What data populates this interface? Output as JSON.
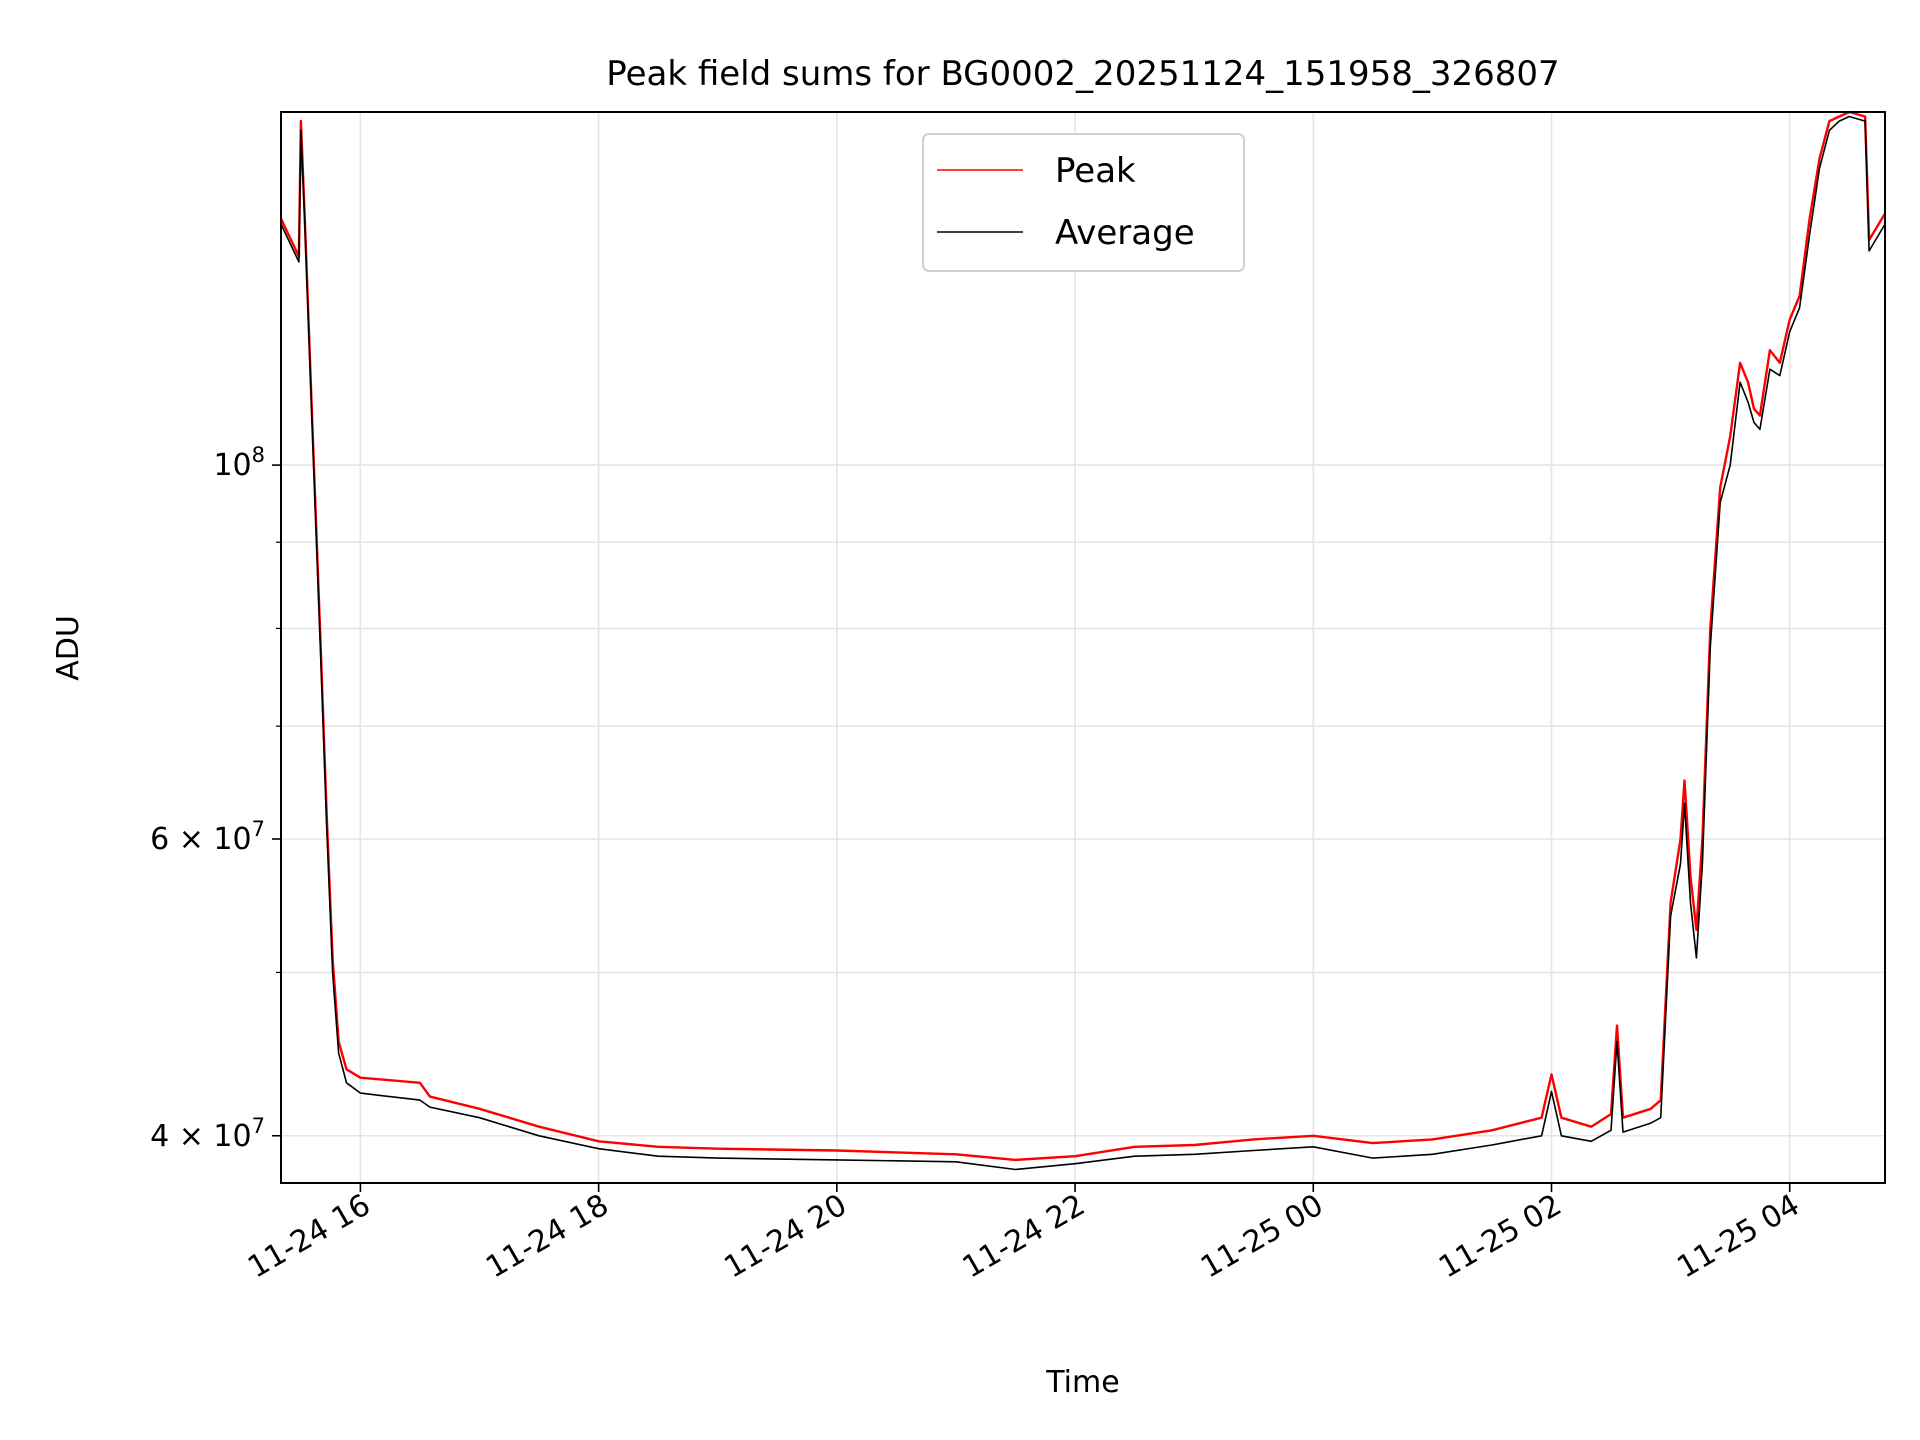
{
  "chart_data": {
    "type": "line",
    "title": "Peak field sums for BG0002_20251124_151958_326807",
    "xlabel": "Time",
    "ylabel": "ADU",
    "x_range": [
      "2025-11-24 15:20",
      "2025-11-25 04:48"
    ],
    "ylim": [
      37500000,
      162000000
    ],
    "yscale": "log",
    "grid": true,
    "legend_position": "upper center",
    "x_ticks": [
      {
        "value": "2025-11-24 16:00",
        "label": "11-24 16"
      },
      {
        "value": "2025-11-24 18:00",
        "label": "11-24 18"
      },
      {
        "value": "2025-11-24 20:00",
        "label": "11-24 20"
      },
      {
        "value": "2025-11-24 22:00",
        "label": "11-24 22"
      },
      {
        "value": "2025-11-25 00:00",
        "label": "11-25 00"
      },
      {
        "value": "2025-11-25 02:00",
        "label": "11-25 02"
      },
      {
        "value": "2025-11-25 04:00",
        "label": "11-25 04"
      }
    ],
    "y_ticks": [
      {
        "value": 40000000,
        "label": "4 × 10",
        "exp": "7"
      },
      {
        "value": 60000000,
        "label": "6 × 10",
        "exp": "7"
      },
      {
        "value": 100000000,
        "label": "10",
        "exp": "8"
      }
    ],
    "y_minor_ticks": [
      50000000,
      70000000,
      80000000,
      90000000
    ],
    "series": [
      {
        "name": "Peak",
        "color": "#ff0000",
        "x": [
          "2025-11-24 15:20",
          "2025-11-24 15:29",
          "2025-11-24 15:30",
          "2025-11-24 15:32",
          "2025-11-24 15:36",
          "2025-11-24 15:40",
          "2025-11-24 15:43",
          "2025-11-24 15:46",
          "2025-11-24 15:49",
          "2025-11-24 15:53",
          "2025-11-24 16:00",
          "2025-11-24 16:30",
          "2025-11-24 16:35",
          "2025-11-24 17:00",
          "2025-11-24 17:30",
          "2025-11-24 18:00",
          "2025-11-24 18:30",
          "2025-11-24 19:00",
          "2025-11-24 20:00",
          "2025-11-24 21:00",
          "2025-11-24 21:30",
          "2025-11-24 22:00",
          "2025-11-24 22:30",
          "2025-11-24 23:00",
          "2025-11-24 23:30",
          "2025-11-25 00:00",
          "2025-11-25 00:30",
          "2025-11-25 01:00",
          "2025-11-25 01:30",
          "2025-11-25 01:55",
          "2025-11-25 02:00",
          "2025-11-25 02:05",
          "2025-11-25 02:20",
          "2025-11-25 02:30",
          "2025-11-25 02:33",
          "2025-11-25 02:36",
          "2025-11-25 02:50",
          "2025-11-25 02:55",
          "2025-11-25 03:00",
          "2025-11-25 03:05",
          "2025-11-25 03:07",
          "2025-11-25 03:10",
          "2025-11-25 03:13",
          "2025-11-25 03:16",
          "2025-11-25 03:20",
          "2025-11-25 03:25",
          "2025-11-25 03:30",
          "2025-11-25 03:35",
          "2025-11-25 03:39",
          "2025-11-25 03:42",
          "2025-11-25 03:45",
          "2025-11-25 03:50",
          "2025-11-25 03:55",
          "2025-11-25 04:00",
          "2025-11-25 04:05",
          "2025-11-25 04:10",
          "2025-11-25 04:15",
          "2025-11-25 04:20",
          "2025-11-25 04:25",
          "2025-11-25 04:30",
          "2025-11-25 04:38",
          "2025-11-25 04:40",
          "2025-11-25 04:48"
        ],
        "y": [
          140000000,
          133000000,
          160000000,
          140000000,
          104000000,
          78000000,
          62000000,
          51000000,
          45500000,
          43800000,
          43300000,
          43000000,
          42200000,
          41500000,
          40500000,
          39700000,
          39400000,
          39300000,
          39200000,
          39000000,
          38700000,
          38900000,
          39400000,
          39500000,
          39800000,
          40000000,
          39600000,
          39800000,
          40300000,
          41000000,
          43500000,
          41000000,
          40500000,
          41200000,
          46500000,
          41000000,
          41500000,
          42000000,
          55000000,
          60000000,
          65000000,
          57000000,
          53000000,
          60000000,
          80000000,
          97000000,
          104000000,
          115000000,
          112000000,
          108000000,
          107000000,
          117000000,
          115000000,
          122000000,
          126000000,
          140000000,
          152000000,
          160000000,
          161000000,
          162000000,
          161000000,
          136000000,
          141000000
        ]
      },
      {
        "name": "Average",
        "color": "#000000",
        "x": [
          "2025-11-24 15:20",
          "2025-11-24 15:29",
          "2025-11-24 15:30",
          "2025-11-24 15:32",
          "2025-11-24 15:36",
          "2025-11-24 15:40",
          "2025-11-24 15:43",
          "2025-11-24 15:46",
          "2025-11-24 15:49",
          "2025-11-24 15:53",
          "2025-11-24 16:00",
          "2025-11-24 16:30",
          "2025-11-24 16:35",
          "2025-11-24 17:00",
          "2025-11-24 17:30",
          "2025-11-24 18:00",
          "2025-11-24 18:30",
          "2025-11-24 19:00",
          "2025-11-24 20:00",
          "2025-11-24 21:00",
          "2025-11-24 21:30",
          "2025-11-24 22:00",
          "2025-11-24 22:30",
          "2025-11-24 23:00",
          "2025-11-24 23:30",
          "2025-11-25 00:00",
          "2025-11-25 00:30",
          "2025-11-25 01:00",
          "2025-11-25 01:30",
          "2025-11-25 01:55",
          "2025-11-25 02:00",
          "2025-11-25 02:05",
          "2025-11-25 02:20",
          "2025-11-25 02:30",
          "2025-11-25 02:33",
          "2025-11-25 02:36",
          "2025-11-25 02:50",
          "2025-11-25 02:55",
          "2025-11-25 03:00",
          "2025-11-25 03:05",
          "2025-11-25 03:07",
          "2025-11-25 03:10",
          "2025-11-25 03:13",
          "2025-11-25 03:16",
          "2025-11-25 03:20",
          "2025-11-25 03:25",
          "2025-11-25 03:30",
          "2025-11-25 03:35",
          "2025-11-25 03:39",
          "2025-11-25 03:42",
          "2025-11-25 03:45",
          "2025-11-25 03:50",
          "2025-11-25 03:55",
          "2025-11-25 04:00",
          "2025-11-25 04:05",
          "2025-11-25 04:10",
          "2025-11-25 04:15",
          "2025-11-25 04:20",
          "2025-11-25 04:25",
          "2025-11-25 04:30",
          "2025-11-25 04:38",
          "2025-11-25 04:40",
          "2025-11-25 04:48"
        ],
        "y": [
          139000000,
          132000000,
          158000000,
          139000000,
          103000000,
          77000000,
          61000000,
          50000000,
          44800000,
          43000000,
          42400000,
          42000000,
          41600000,
          41000000,
          40000000,
          39300000,
          38900000,
          38800000,
          38700000,
          38600000,
          38200000,
          38500000,
          38900000,
          39000000,
          39200000,
          39400000,
          38800000,
          39000000,
          39500000,
          40000000,
          42500000,
          40000000,
          39700000,
          40300000,
          45500000,
          40200000,
          40700000,
          41000000,
          54000000,
          58000000,
          63000000,
          55000000,
          51000000,
          58000000,
          78000000,
          95000000,
          100000000,
          112000000,
          109000000,
          106000000,
          105000000,
          114000000,
          113000000,
          120000000,
          124000000,
          137000000,
          150000000,
          158000000,
          160000000,
          161000000,
          160000000,
          134000000,
          139000000
        ]
      }
    ]
  }
}
